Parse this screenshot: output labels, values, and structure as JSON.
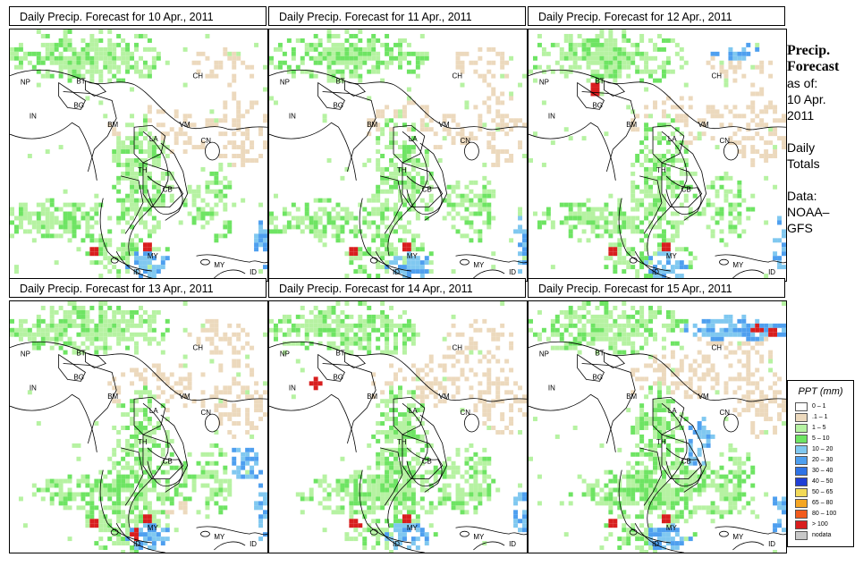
{
  "panels": [
    {
      "title": "Daily Precip. Forecast for  10 Apr., 2011"
    },
    {
      "title": "Daily Precip. Forecast for  11 Apr., 2011"
    },
    {
      "title": "Daily Precip. Forecast for  12 Apr., 2011"
    },
    {
      "title": "Daily Precip. Forecast for  13 Apr., 2011"
    },
    {
      "title": "Daily Precip. Forecast for  14 Apr., 2011"
    },
    {
      "title": "Daily Precip. Forecast for  15 Apr., 2011"
    }
  ],
  "country_labels": [
    "NP",
    "BT",
    "BG",
    "IN",
    "CH",
    "BM",
    "VM",
    "LA",
    "CN",
    "TH",
    "CB",
    "MY",
    "ID",
    "MY",
    "ID"
  ],
  "info": {
    "line1": "Precip.",
    "line2": "Forecast",
    "line3": "as of:",
    "line4": "10 Apr.",
    "line5": "2011",
    "line6": "Daily",
    "line7": "Totals",
    "line8": "Data:",
    "line9": "NOAA–",
    "line10": "GFS"
  },
  "legend": {
    "title": "PPT (mm)",
    "items": [
      {
        "label": "0 – 1",
        "color": "#ffffff"
      },
      {
        "label": ".1 – 1",
        "color": "#ecd9bd"
      },
      {
        "label": "1 – 5",
        "color": "#b6f2a2"
      },
      {
        "label": "5 – 10",
        "color": "#6ee463"
      },
      {
        "label": "10 – 20",
        "color": "#80c8f0"
      },
      {
        "label": "20 – 30",
        "color": "#4e9fef"
      },
      {
        "label": "30 – 40",
        "color": "#2f73e6"
      },
      {
        "label": "40 – 50",
        "color": "#1f3fd6"
      },
      {
        "label": "50 – 65",
        "color": "#f2d957"
      },
      {
        "label": "65 – 80",
        "color": "#f5a623"
      },
      {
        "label": "80 – 100",
        "color": "#f25b1d"
      },
      {
        "label": "> 100",
        "color": "#d81e1e"
      },
      {
        "label": "nodata",
        "color": "#c8c8c8"
      }
    ]
  },
  "colors": {
    "beige": "#ecd9bd",
    "light_green": "#b6f2a2",
    "green": "#6ee463",
    "light_blue": "#80c8f0",
    "blue": "#4e9fef",
    "red": "#d81e1e"
  }
}
